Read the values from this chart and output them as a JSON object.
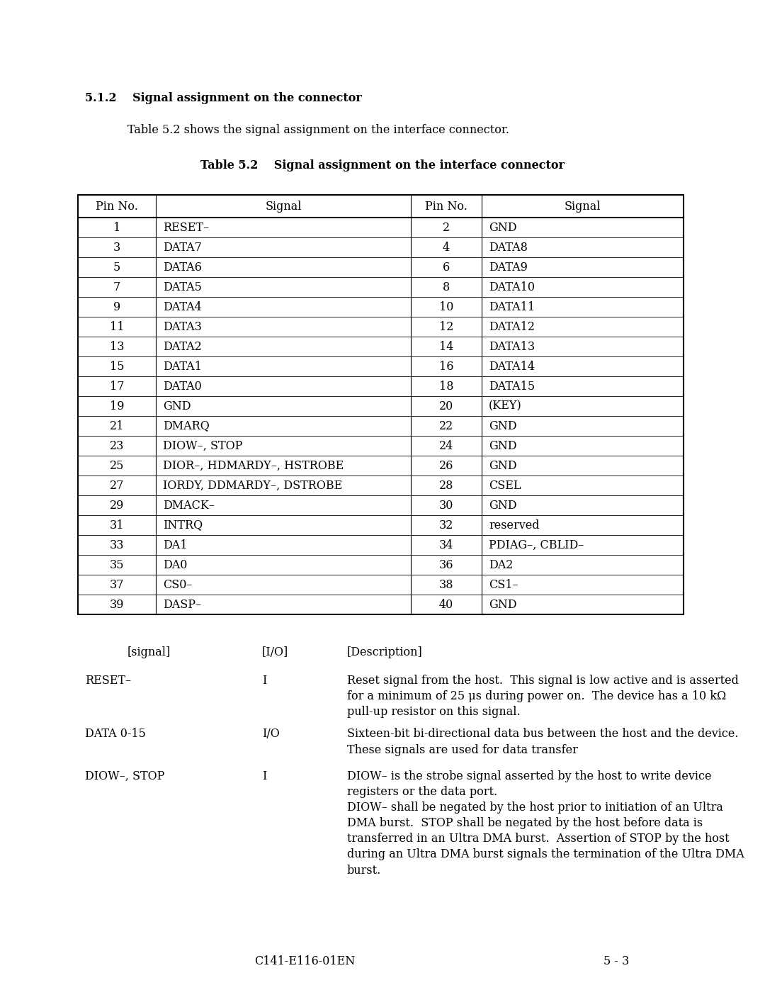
{
  "background_color": "#ffffff",
  "section_title": "5.1.2    Signal assignment on the connector",
  "intro_text": "Table 5.2 shows the signal assignment on the interface connector.",
  "table_title": "Table 5.2    Signal assignment on the interface connector",
  "table_headers": [
    "Pin No.",
    "Signal",
    "Pin No.",
    "Signal"
  ],
  "table_rows": [
    [
      "1",
      "RESET–",
      "2",
      "GND"
    ],
    [
      "3",
      "DATA7",
      "4",
      "DATA8"
    ],
    [
      "5",
      "DATA6",
      "6",
      "DATA9"
    ],
    [
      "7",
      "DATA5",
      "8",
      "DATA10"
    ],
    [
      "9",
      "DATA4",
      "10",
      "DATA11"
    ],
    [
      "11",
      "DATA3",
      "12",
      "DATA12"
    ],
    [
      "13",
      "DATA2",
      "14",
      "DATA13"
    ],
    [
      "15",
      "DATA1",
      "16",
      "DATA14"
    ],
    [
      "17",
      "DATA0",
      "18",
      "DATA15"
    ],
    [
      "19",
      "GND",
      "20",
      "(KEY)"
    ],
    [
      "21",
      "DMARQ",
      "22",
      "GND"
    ],
    [
      "23",
      "DIOW–, STOP",
      "24",
      "GND"
    ],
    [
      "25",
      "DIOR–, HDMARDY–, HSTROBE",
      "26",
      "GND"
    ],
    [
      "27",
      "IORDY, DDMARDY–, DSTROBE",
      "28",
      "CSEL"
    ],
    [
      "29",
      "DMACK–",
      "30",
      "GND"
    ],
    [
      "31",
      "INTRQ",
      "32",
      "reserved"
    ],
    [
      "33",
      "DA1",
      "34",
      "PDIAG–, CBLID–"
    ],
    [
      "35",
      "DA0",
      "36",
      "DA2"
    ],
    [
      "37",
      "CS0–",
      "38",
      "CS1–"
    ],
    [
      "39",
      "DASP–",
      "40",
      "GND"
    ]
  ],
  "signal_entries": [
    {
      "signal": "RESET–",
      "io": "I",
      "description": "Reset signal from the host.  This signal is low active and is asserted\nfor a minimum of 25 μs during power on.  The device has a 10 kΩ\npull-up resistor on this signal."
    },
    {
      "signal": "DATA 0-15",
      "io": "I/O",
      "description": "Sixteen-bit bi-directional data bus between the host and the device.\nThese signals are used for data transfer"
    },
    {
      "signal": "DIOW–, STOP",
      "io": "I",
      "description": "DIOW– is the strobe signal asserted by the host to write device\nregisters or the data port.\nDIOW– shall be negated by the host prior to initiation of an Ultra\nDMA burst.  STOP shall be negated by the host before data is\ntransferred in an Ultra DMA burst.  Assertion of STOP by the host\nduring an Ultra DMA burst signals the termination of the Ultra DMA\nburst."
    }
  ],
  "footer_left": "C141-E116-01EN",
  "footer_right": "5 - 3"
}
